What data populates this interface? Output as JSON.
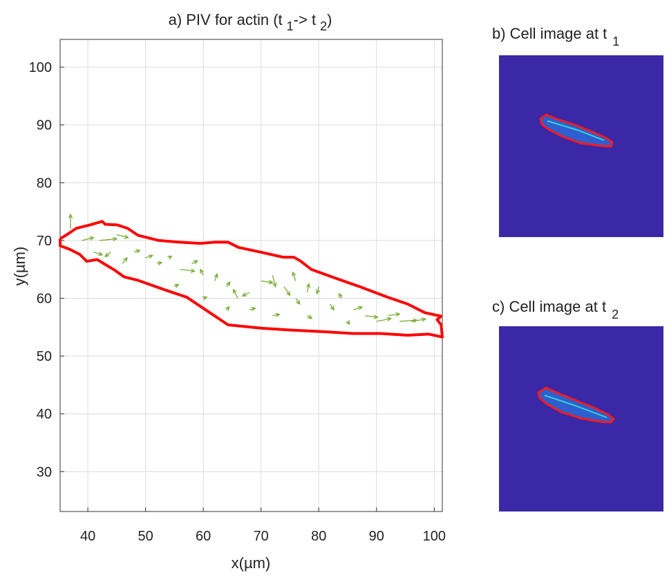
{
  "chart_data": {
    "type": "quiver",
    "title_parts": [
      "a) PIV for actin (t",
      "1",
      "-> t",
      "2",
      ")"
    ],
    "xlabel": "x(µm)",
    "ylabel": "y(µm)",
    "xlim": [
      35.2,
      101.4
    ],
    "xticks": [
      40,
      50,
      60,
      70,
      80,
      90,
      100
    ],
    "ylim": [
      23.1,
      104.8
    ],
    "yticks": [
      30,
      40,
      50,
      60,
      70,
      80,
      90,
      100
    ],
    "grid": true,
    "arrow_color": "#77ac30",
    "outline_color": "#ff0000",
    "outline": {
      "x": [
        35.2,
        36.2,
        38.0,
        40.4,
        42.5,
        43.0,
        45.1,
        46.9,
        48.7,
        52.3,
        55.9,
        59.5,
        61.9,
        64.3,
        66.1,
        70.3,
        73.9,
        75.7,
        76.9,
        78.7,
        82.3,
        87.1,
        91.9,
        95.4,
        98.4,
        101.2,
        100.5,
        101.2,
        101.4,
        99.0,
        95.4,
        90.7,
        85.9,
        81.1,
        75.1,
        70.3,
        64.3,
        60.7,
        57.1,
        53.5,
        48.7,
        46.3,
        44.6,
        41.6,
        39.8,
        38.6,
        36.8,
        35.2,
        35.2
      ],
      "y": [
        70.3,
        70.9,
        72.1,
        72.7,
        73.3,
        72.8,
        72.7,
        72.1,
        70.9,
        70.0,
        69.7,
        69.5,
        69.7,
        69.7,
        68.8,
        67.9,
        67.1,
        67.1,
        66.4,
        65.0,
        63.7,
        62.0,
        60.2,
        59.0,
        57.5,
        56.9,
        56.3,
        55.4,
        53.3,
        53.8,
        53.6,
        53.9,
        53.9,
        54.2,
        54.5,
        54.8,
        55.4,
        57.8,
        60.2,
        61.4,
        63.1,
        63.7,
        64.9,
        66.7,
        66.4,
        67.6,
        68.5,
        69.1,
        70.3
      ]
    },
    "arrows": {
      "x": [
        37,
        39,
        42,
        45,
        44,
        46,
        41,
        48,
        50,
        52,
        54,
        56,
        58,
        60,
        62,
        64,
        66,
        68,
        70,
        72,
        74,
        76,
        76,
        78,
        80,
        82,
        84,
        86,
        88,
        90,
        92,
        94,
        96,
        85,
        68,
        64,
        72,
        78,
        60,
        55
      ],
      "y": [
        72,
        70,
        70,
        71,
        68,
        66,
        68,
        68,
        67,
        66,
        67,
        65,
        66,
        64,
        63,
        62,
        60,
        61,
        63,
        64,
        62,
        63,
        60,
        61,
        62,
        59,
        60,
        58,
        57,
        56,
        57,
        56,
        56,
        56,
        58,
        58,
        57,
        57,
        60,
        62
      ],
      "u": [
        0,
        2,
        3,
        2,
        -1,
        0.8,
        1.5,
        1,
        1.2,
        0.8,
        0.5,
        2.5,
        1,
        -0.5,
        0.4,
        0.6,
        -0.8,
        -1.2,
        2,
        0.5,
        1,
        -0.5,
        0.7,
        0.3,
        -0.3,
        0.6,
        -0.5,
        1.5,
        2.2,
        2.5,
        2,
        3,
        2.5,
        0.3,
        1,
        0.5,
        1.2,
        0.8,
        0.6,
        0.7
      ],
      "v": [
        2.5,
        0.5,
        0.3,
        -0.5,
        -0.8,
        1,
        -0.5,
        0.3,
        0.4,
        0.2,
        0.3,
        -0.3,
        0.5,
        1,
        1.2,
        0.8,
        1.5,
        -0.6,
        -0.3,
        -2,
        -1.5,
        1.5,
        -1,
        1.5,
        -1.2,
        -1,
        0.8,
        0.5,
        -0.3,
        0.5,
        0.3,
        0.2,
        0.4,
        -0.5,
        0.3,
        0.5,
        0.2,
        -0.5,
        0.2,
        0.4
      ]
    },
    "panels": [
      {
        "title": "b) Cell image at t",
        "subscript": "1"
      },
      {
        "title": "c) Cell image at t",
        "subscript": "2"
      }
    ]
  }
}
